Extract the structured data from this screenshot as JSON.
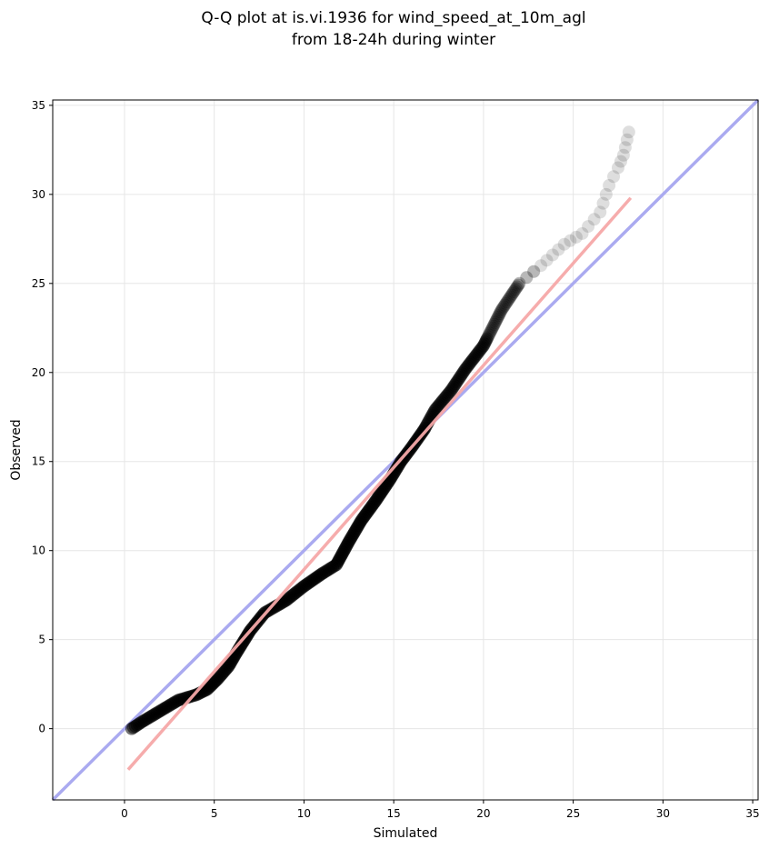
{
  "chart_data": {
    "type": "scatter",
    "title_line1": "Q-Q plot at is.vi.1936 for wind_speed_at_10m_agl",
    "title_line2": "from 18-24h during winter",
    "xlabel": "Simulated",
    "ylabel": "Observed",
    "xlim": [
      -4,
      35.3
    ],
    "ylim": [
      -4,
      35.3
    ],
    "xticks": [
      0,
      5,
      10,
      15,
      20,
      25,
      30,
      35
    ],
    "yticks": [
      0,
      5,
      10,
      15,
      20,
      25,
      30,
      35
    ],
    "grid": true,
    "reference_line": {
      "from": [
        -4,
        -4
      ],
      "to": [
        35.3,
        35.3
      ],
      "color": "#aaaaf0"
    },
    "fit_line": {
      "from": [
        0.2,
        -2.3
      ],
      "to": [
        28.2,
        29.8
      ],
      "color": "#f5a8a8"
    },
    "marker_color": "#000000",
    "quantile_curve": [
      [
        0.4,
        0.0
      ],
      [
        1.0,
        0.4
      ],
      [
        2.0,
        1.0
      ],
      [
        3.0,
        1.6
      ],
      [
        4.0,
        1.9
      ],
      [
        4.6,
        2.2
      ],
      [
        5.2,
        2.8
      ],
      [
        5.8,
        3.5
      ],
      [
        6.2,
        4.2
      ],
      [
        7.0,
        5.5
      ],
      [
        7.8,
        6.5
      ],
      [
        9.0,
        7.2
      ],
      [
        10.0,
        8.0
      ],
      [
        11.0,
        8.7
      ],
      [
        11.8,
        9.2
      ],
      [
        12.5,
        10.5
      ],
      [
        13.2,
        11.7
      ],
      [
        14.0,
        12.8
      ],
      [
        14.8,
        14.0
      ],
      [
        15.4,
        15.0
      ],
      [
        16.0,
        15.8
      ],
      [
        16.7,
        16.8
      ],
      [
        17.3,
        17.9
      ],
      [
        18.2,
        19.0
      ],
      [
        19.0,
        20.2
      ],
      [
        20.0,
        21.5
      ],
      [
        21.0,
        23.5
      ],
      [
        22.0,
        25.0
      ],
      [
        23.2,
        26.0
      ],
      [
        24.5,
        27.2
      ],
      [
        25.5,
        27.8
      ],
      [
        26.5,
        29.0
      ],
      [
        27.0,
        30.5
      ],
      [
        27.5,
        31.5
      ],
      [
        27.8,
        32.2
      ],
      [
        28.1,
        33.5
      ]
    ]
  }
}
